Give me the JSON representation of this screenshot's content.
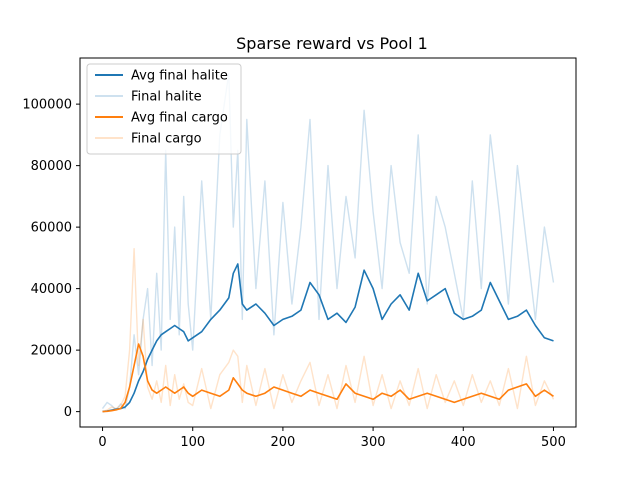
{
  "chart_data": {
    "type": "line",
    "title": "Sparse reward vs Pool 1",
    "xlabel": "",
    "ylabel": "",
    "xlim": [
      -25,
      525
    ],
    "ylim": [
      -5000,
      115000
    ],
    "x_ticks": [
      0,
      100,
      200,
      300,
      400,
      500
    ],
    "x_tick_labels": [
      "0",
      "100",
      "200",
      "300",
      "400",
      "500"
    ],
    "y_ticks": [
      0,
      20000,
      40000,
      60000,
      80000,
      100000
    ],
    "y_tick_labels": [
      "0",
      "20000",
      "40000",
      "60000",
      "80000",
      "100000"
    ],
    "grid": false,
    "legend_position": "top-left",
    "series": [
      {
        "name": "Avg final halite",
        "color": "#1f77b4",
        "opacity": 1.0,
        "line_width": 1.6,
        "x": [
          0,
          5,
          10,
          15,
          20,
          25,
          30,
          35,
          40,
          45,
          50,
          55,
          60,
          65,
          70,
          75,
          80,
          85,
          90,
          95,
          100,
          110,
          120,
          130,
          140,
          145,
          150,
          155,
          160,
          170,
          180,
          190,
          200,
          210,
          220,
          230,
          240,
          250,
          260,
          270,
          280,
          290,
          300,
          310,
          320,
          330,
          340,
          350,
          360,
          370,
          380,
          390,
          400,
          410,
          420,
          430,
          440,
          450,
          460,
          470,
          480,
          490,
          500
        ],
        "values": [
          0,
          200,
          500,
          800,
          1000,
          1500,
          3000,
          6000,
          10000,
          13000,
          17000,
          20000,
          23000,
          25000,
          26000,
          27000,
          28000,
          27000,
          26000,
          23000,
          24000,
          26000,
          30000,
          33000,
          37000,
          45000,
          48000,
          35000,
          33000,
          35000,
          32000,
          28000,
          30000,
          31000,
          33000,
          42000,
          38000,
          30000,
          32000,
          29000,
          34000,
          46000,
          40000,
          30000,
          35000,
          38000,
          33000,
          45000,
          36000,
          38000,
          40000,
          32000,
          30000,
          31000,
          33000,
          42000,
          36000,
          30000,
          31000,
          33000,
          28000,
          24000,
          23000
        ]
      },
      {
        "name": "Final halite",
        "color": "#1f77b4",
        "opacity": 0.22,
        "line_width": 1.4,
        "x": [
          0,
          5,
          10,
          15,
          20,
          25,
          30,
          35,
          40,
          45,
          50,
          55,
          60,
          65,
          70,
          75,
          80,
          85,
          90,
          95,
          100,
          110,
          120,
          130,
          140,
          145,
          150,
          155,
          160,
          170,
          180,
          190,
          200,
          210,
          220,
          230,
          240,
          250,
          260,
          270,
          280,
          290,
          300,
          310,
          320,
          330,
          340,
          350,
          360,
          370,
          380,
          390,
          400,
          410,
          420,
          430,
          440,
          450,
          460,
          470,
          480,
          490,
          500
        ],
        "values": [
          1000,
          3000,
          2000,
          500,
          2500,
          1000,
          8000,
          25000,
          12000,
          30000,
          40000,
          15000,
          45000,
          20000,
          85000,
          30000,
          60000,
          25000,
          70000,
          35000,
          20000,
          75000,
          30000,
          90000,
          110000,
          60000,
          85000,
          30000,
          95000,
          40000,
          75000,
          25000,
          68000,
          35000,
          60000,
          95000,
          30000,
          80000,
          40000,
          70000,
          50000,
          98000,
          65000,
          40000,
          80000,
          55000,
          45000,
          90000,
          35000,
          70000,
          60000,
          45000,
          30000,
          75000,
          40000,
          90000,
          65000,
          35000,
          80000,
          55000,
          30000,
          60000,
          42000
        ]
      },
      {
        "name": "Avg final cargo",
        "color": "#ff7f0e",
        "opacity": 1.0,
        "line_width": 1.6,
        "x": [
          0,
          5,
          10,
          15,
          20,
          25,
          30,
          35,
          40,
          45,
          50,
          55,
          60,
          65,
          70,
          75,
          80,
          85,
          90,
          95,
          100,
          110,
          120,
          130,
          140,
          145,
          150,
          155,
          160,
          170,
          180,
          190,
          200,
          210,
          220,
          230,
          240,
          250,
          260,
          270,
          280,
          290,
          300,
          310,
          320,
          330,
          340,
          350,
          360,
          370,
          380,
          390,
          400,
          410,
          420,
          430,
          440,
          450,
          460,
          470,
          480,
          490,
          500
        ],
        "values": [
          0,
          100,
          300,
          600,
          1000,
          3000,
          8000,
          15000,
          22000,
          18000,
          10000,
          7000,
          6000,
          7000,
          8000,
          7000,
          6000,
          7000,
          8000,
          6000,
          5000,
          7000,
          6000,
          5000,
          7000,
          11000,
          9000,
          7000,
          6000,
          5000,
          6000,
          8000,
          7000,
          6000,
          5000,
          7000,
          6000,
          5000,
          4000,
          9000,
          6000,
          5000,
          4000,
          6000,
          5000,
          7000,
          4000,
          5000,
          6000,
          5000,
          4000,
          3000,
          4000,
          5000,
          6000,
          5000,
          4000,
          7000,
          8000,
          9000,
          5000,
          7000,
          5000
        ]
      },
      {
        "name": "Final cargo",
        "color": "#ff7f0e",
        "opacity": 0.22,
        "line_width": 1.4,
        "x": [
          0,
          5,
          10,
          15,
          20,
          25,
          30,
          35,
          40,
          45,
          50,
          55,
          60,
          65,
          70,
          75,
          80,
          85,
          90,
          95,
          100,
          110,
          120,
          130,
          140,
          145,
          150,
          155,
          160,
          170,
          180,
          190,
          200,
          210,
          220,
          230,
          240,
          250,
          260,
          270,
          280,
          290,
          300,
          310,
          320,
          330,
          340,
          350,
          360,
          370,
          380,
          390,
          400,
          410,
          420,
          430,
          440,
          450,
          460,
          470,
          480,
          490,
          500
        ],
        "values": [
          0,
          500,
          1500,
          1000,
          2000,
          5000,
          20000,
          53000,
          15000,
          30000,
          8000,
          4000,
          10000,
          3000,
          15000,
          2000,
          12000,
          4000,
          9000,
          3000,
          2000,
          14000,
          1000,
          12000,
          16000,
          20000,
          18000,
          3000,
          15000,
          2000,
          14000,
          1000,
          12000,
          3000,
          10000,
          16000,
          2000,
          12000,
          1000,
          15000,
          3000,
          18000,
          2000,
          12000,
          1000,
          10000,
          2000,
          14000,
          1000,
          12000,
          3000,
          10000,
          2000,
          12000,
          3000,
          10000,
          2000,
          14000,
          1000,
          18000,
          2000,
          10000,
          4000
        ]
      }
    ]
  }
}
